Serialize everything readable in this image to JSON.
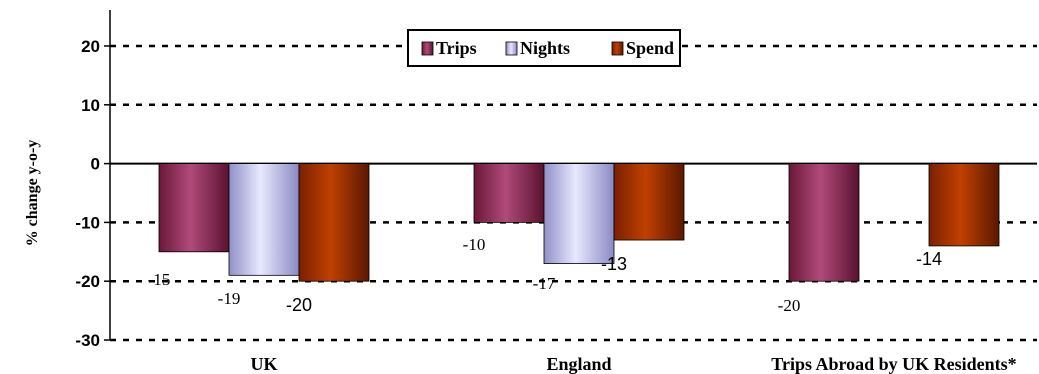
{
  "chart_data": {
    "type": "bar",
    "title": "",
    "xlabel": "",
    "ylabel": "% change y-o-y",
    "ylim": [
      -30,
      20
    ],
    "yticks": [
      20,
      10,
      0,
      -10,
      -20,
      -30
    ],
    "grid": true,
    "legend_position": "top-center",
    "categories": [
      "UK",
      "England",
      "Trips Abroad by UK Residents*"
    ],
    "series": [
      {
        "name": "Trips",
        "values": [
          -15,
          -10,
          -20
        ],
        "labels": [
          "-15",
          "-10",
          "-20"
        ],
        "color": "#8b2a55"
      },
      {
        "name": "Nights",
        "values": [
          -19,
          -17,
          null
        ],
        "labels": [
          "-19",
          "-17",
          ""
        ],
        "color": "#b8b8f0"
      },
      {
        "name": "Spend",
        "values": [
          -20,
          -13,
          -14
        ],
        "labels": [
          "-20",
          "-13",
          "-14"
        ],
        "color": "#a83200"
      }
    ]
  }
}
